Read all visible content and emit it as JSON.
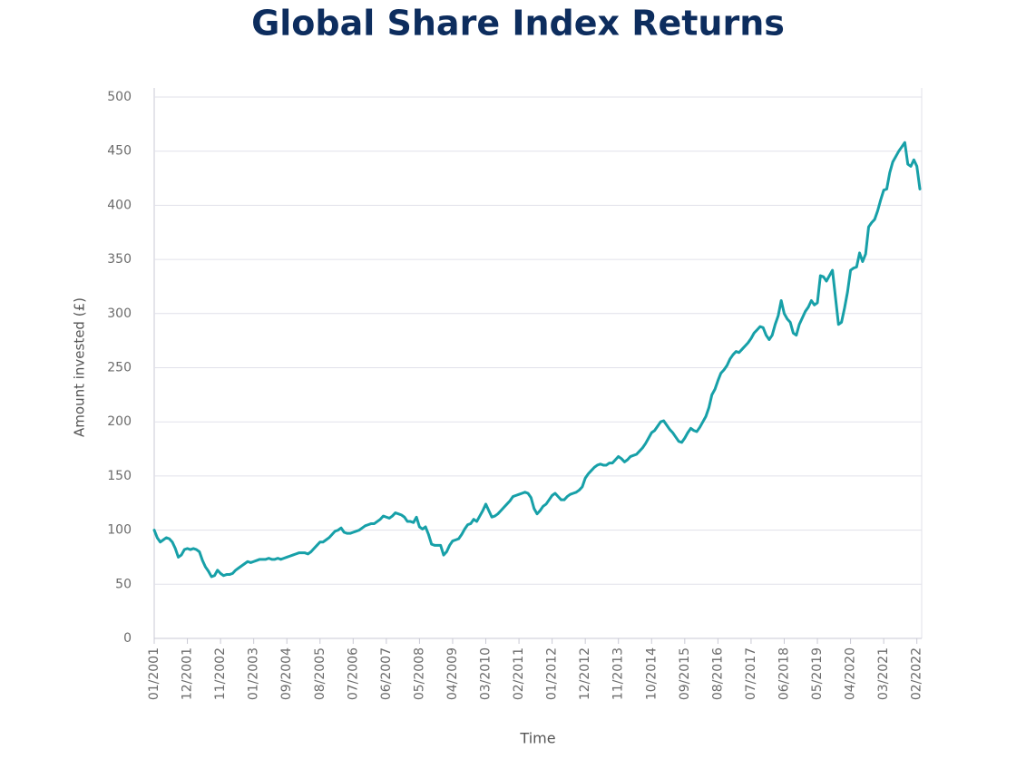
{
  "chart_data": {
    "type": "line",
    "title": "Global Share Index Returns",
    "x_label": "Time",
    "y_label": "Amount invested (£)",
    "categories": [
      "01/2001",
      null,
      null,
      null,
      null,
      null,
      null,
      null,
      null,
      null,
      null,
      "12/2001",
      null,
      null,
      null,
      null,
      null,
      null,
      null,
      null,
      null,
      null,
      "11/2002",
      null,
      null,
      null,
      null,
      null,
      null,
      null,
      null,
      null,
      null,
      "01/2003",
      null,
      null,
      null,
      null,
      null,
      null,
      null,
      null,
      null,
      null,
      "09/2004",
      null,
      null,
      null,
      null,
      null,
      null,
      null,
      null,
      null,
      null,
      "08/2005",
      null,
      null,
      null,
      null,
      null,
      null,
      null,
      null,
      null,
      null,
      "07/2006",
      null,
      null,
      null,
      null,
      null,
      null,
      null,
      null,
      null,
      null,
      "06/2007",
      null,
      null,
      null,
      null,
      null,
      null,
      null,
      null,
      null,
      null,
      "05/2008",
      null,
      null,
      null,
      null,
      null,
      null,
      null,
      null,
      null,
      null,
      "04/2009",
      null,
      null,
      null,
      null,
      null,
      null,
      null,
      null,
      null,
      null,
      "03/2010",
      null,
      null,
      null,
      null,
      null,
      null,
      null,
      null,
      null,
      null,
      "02/2011",
      null,
      null,
      null,
      null,
      null,
      null,
      null,
      null,
      null,
      null,
      "01/2012",
      null,
      null,
      null,
      null,
      null,
      null,
      null,
      null,
      null,
      null,
      "12/2012",
      null,
      null,
      null,
      null,
      null,
      null,
      null,
      null,
      null,
      null,
      "11/2013",
      null,
      null,
      null,
      null,
      null,
      null,
      null,
      null,
      null,
      null,
      "10/2014",
      null,
      null,
      null,
      null,
      null,
      null,
      null,
      null,
      null,
      null,
      "09/2015",
      null,
      null,
      null,
      null,
      null,
      null,
      null,
      null,
      null,
      null,
      "08/2016",
      null,
      null,
      null,
      null,
      null,
      null,
      null,
      null,
      null,
      null,
      "07/2017",
      null,
      null,
      null,
      null,
      null,
      null,
      null,
      null,
      null,
      null,
      "06/2018",
      null,
      null,
      null,
      null,
      null,
      null,
      null,
      null,
      null,
      null,
      "05/2019",
      null,
      null,
      null,
      null,
      null,
      null,
      null,
      null,
      null,
      null,
      "04/2020",
      null,
      null,
      null,
      null,
      null,
      null,
      null,
      null,
      null,
      null,
      "03/2021",
      null,
      null,
      null,
      null,
      null,
      null,
      null,
      null,
      null,
      null,
      "02/2022",
      null
    ],
    "series": [
      {
        "name": "Amount invested",
        "color": "#17a0a8",
        "values": [
          100,
          93,
          89,
          91,
          93,
          92,
          89,
          83,
          75,
          77,
          82,
          83,
          82,
          83,
          82,
          80,
          72,
          66,
          62,
          57,
          58,
          63,
          60,
          58,
          59,
          59,
          60,
          63,
          65,
          67,
          69,
          71,
          70,
          71,
          72,
          73,
          73,
          73,
          74,
          73,
          73,
          74,
          73,
          74,
          75,
          76,
          77,
          78,
          79,
          79,
          79,
          78,
          80,
          83,
          86,
          89,
          89,
          91,
          93,
          96,
          99,
          100,
          102,
          98,
          97,
          97,
          98,
          99,
          100,
          102,
          104,
          105,
          106,
          106,
          108,
          110,
          113,
          112,
          111,
          113,
          116,
          115,
          114,
          112,
          108,
          108,
          107,
          112,
          103,
          101,
          103,
          96,
          87,
          86,
          86,
          86,
          77,
          80,
          86,
          90,
          91,
          92,
          96,
          101,
          105,
          106,
          110,
          108,
          113,
          118,
          124,
          118,
          112,
          113,
          115,
          118,
          121,
          124,
          127,
          131,
          132,
          133,
          134,
          135,
          134,
          130,
          120,
          115,
          118,
          122,
          124,
          128,
          132,
          134,
          131,
          128,
          128,
          131,
          133,
          134,
          135,
          137,
          140,
          148,
          152,
          155,
          158,
          160,
          161,
          160,
          160,
          162,
          162,
          165,
          168,
          166,
          163,
          165,
          168,
          169,
          170,
          173,
          176,
          180,
          185,
          190,
          192,
          196,
          200,
          201,
          197,
          193,
          190,
          186,
          182,
          181,
          185,
          190,
          194,
          192,
          191,
          195,
          200,
          205,
          213,
          225,
          230,
          238,
          245,
          248,
          252,
          258,
          262,
          265,
          264,
          267,
          270,
          273,
          277,
          282,
          285,
          288,
          287,
          280,
          276,
          280,
          290,
          298,
          312,
          300,
          295,
          292,
          282,
          280,
          290,
          296,
          302,
          306,
          312,
          308,
          310,
          335,
          334,
          330,
          335,
          340,
          315,
          290,
          292,
          305,
          320,
          340,
          342,
          343,
          356,
          348,
          355,
          380,
          384,
          387,
          395,
          405,
          414,
          415,
          430,
          440,
          445,
          450,
          454,
          458,
          438,
          436,
          442,
          436,
          415
        ]
      }
    ],
    "ylim": [
      0,
      500
    ],
    "yticks": [
      0,
      50,
      100,
      150,
      200,
      250,
      300,
      350,
      400,
      450,
      500
    ],
    "grid": true
  }
}
